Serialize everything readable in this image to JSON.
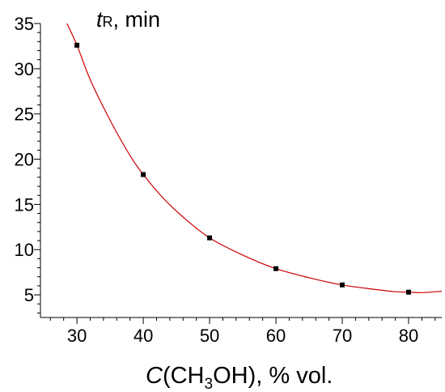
{
  "chart_data": {
    "type": "scatter",
    "title": "",
    "ylabel": {
      "prefix": "t",
      "subscript": "R",
      "suffix": ", min"
    },
    "xlabel": {
      "prefix": "C",
      "mid1": "(CH",
      "subscript": "3",
      "mid2": "OH), % vol."
    },
    "xlim": [
      24.5,
      85
    ],
    "ylim": [
      2.5,
      35
    ],
    "x_ticks": [
      30,
      40,
      50,
      60,
      70,
      80
    ],
    "y_ticks": [
      5,
      10,
      15,
      20,
      25,
      30,
      35
    ],
    "x_minor_step": 2,
    "y_minor_step": 1,
    "grid": false,
    "series": [
      {
        "x": [
          30,
          40,
          50,
          60,
          70,
          80
        ],
        "y": [
          32.6,
          18.3,
          11.3,
          7.9,
          6.1,
          5.3
        ],
        "marker_color": "#000000",
        "fit_line": {
          "x": [
            28.5,
            30,
            32,
            35,
            38,
            40,
            43,
            46,
            50,
            55,
            60,
            65,
            70,
            75,
            78,
            80,
            82,
            85
          ],
          "y": [
            35.0,
            32.6,
            28.8,
            24.3,
            20.4,
            18.3,
            15.7,
            13.6,
            11.3,
            9.4,
            7.9,
            6.9,
            6.1,
            5.6,
            5.35,
            5.3,
            5.25,
            5.4
          ],
          "color": "#cc0000"
        }
      }
    ]
  }
}
